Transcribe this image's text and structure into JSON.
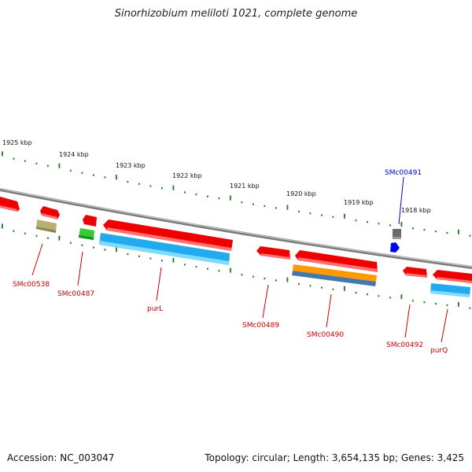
{
  "title": "Sinorhizobium meliloti 1021, complete genome",
  "footer": {
    "accession": "Accession: NC_003047",
    "summary": "Topology: circular; Length: 3,654,135 bp; Genes: 3,425"
  },
  "scale_labels": [
    "1925 kbp",
    "1924 kbp",
    "1923 kbp",
    "1922 kbp",
    "1921 kbp",
    "1920 kbp",
    "1919 kbp",
    "1918 kbp"
  ],
  "gene_labels": [
    {
      "id": "smc00538",
      "text": "SMc00538",
      "color": "#cc0000"
    },
    {
      "id": "smc00487",
      "text": "SMc00487",
      "color": "#cc0000"
    },
    {
      "id": "purl",
      "text": "purL",
      "color": "#cc0000"
    },
    {
      "id": "smc00489",
      "text": "SMc00489",
      "color": "#cc0000"
    },
    {
      "id": "smc00490",
      "text": "SMc00490",
      "color": "#cc0000"
    },
    {
      "id": "smc00492",
      "text": "SMc00492",
      "color": "#cc0000"
    },
    {
      "id": "purq",
      "text": "purQ",
      "color": "#cc0000"
    },
    {
      "id": "smc00491",
      "text": "SMc00491",
      "color": "#0000cc"
    }
  ],
  "colors": {
    "backbone": "#888888",
    "gene_forward": "#ee0000",
    "cds": "#22aaee",
    "tick": "#1a7a1a",
    "rna": "#0000ff",
    "misc": "#6a6a6a",
    "orange": "#ff9900",
    "olive": "#b8b070",
    "green": "#33cc33"
  }
}
